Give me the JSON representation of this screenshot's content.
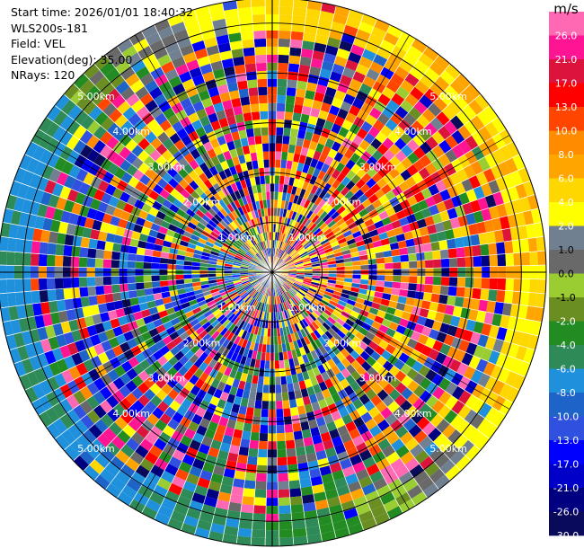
{
  "chart_data": {
    "type": "ppi-radar",
    "header": {
      "start_time": "Start time: 2026/01/01 18:40:32",
      "instrument": "WLS200s-181",
      "field": "Field: VEL",
      "elevation": "Elevation(deg): 35.00",
      "nrays": "NRays: 120"
    },
    "n_rays": 120,
    "max_range_km": 5.5,
    "range_rings": [
      {
        "range_km": 1.0,
        "label": "1.00km"
      },
      {
        "range_km": 2.0,
        "label": "2.00km"
      },
      {
        "range_km": 3.0,
        "label": "3.00km"
      },
      {
        "range_km": 4.0,
        "label": "4.00km"
      },
      {
        "range_km": 5.0,
        "label": "5.00km"
      }
    ],
    "colorbar": {
      "unit": "m/s",
      "levels": [
        -30,
        -26,
        -21,
        -17,
        -13,
        -10,
        -8,
        -6,
        -4,
        -2,
        -1,
        0,
        1,
        2,
        4,
        6,
        8,
        10,
        13,
        17,
        21,
        26,
        30
      ],
      "tick_labels": [
        "26.0",
        "21.0",
        "17.0",
        "13.0",
        "10.0",
        "8.0",
        "6.0",
        "4.0",
        "2.0",
        "1.0",
        "0.0",
        "-1.0",
        "-2.0",
        "-4.0",
        "-6.0",
        "-8.0",
        "-10.0",
        "-13.0",
        "-17.0",
        "-21.0",
        "-26.0",
        "-30.0"
      ],
      "colors": [
        "#0a0a5a",
        "#000080",
        "#0000c8",
        "#0000ff",
        "#3050e0",
        "#1e64c8",
        "#1e90dc",
        "#2e8b57",
        "#228b22",
        "#6b8e23",
        "#9acd32",
        "#696969",
        "#708090",
        "#ffff00",
        "#ffd700",
        "#ffa500",
        "#ff8c00",
        "#ff4500",
        "#ff0000",
        "#dc143c",
        "#ff1493",
        "#ff69b4"
      ]
    }
  }
}
